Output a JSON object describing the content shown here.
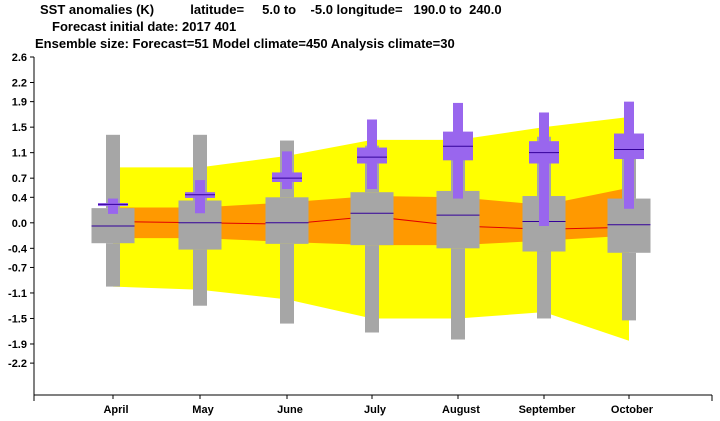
{
  "header": {
    "line1": "SST anomalies (K)          latitude=     5.0 to    -5.0 longitude=   190.0 to  240.0",
    "line2": "Forecast initial date: 2017 401",
    "line3": "Ensemble size: Forecast=51 Model climate=450 Analysis climate=30"
  },
  "chart_data": {
    "type": "box",
    "categories": [
      "April",
      "May",
      "June",
      "July",
      "August",
      "September",
      "October"
    ],
    "ylim": [
      -2.7,
      2.6
    ],
    "yticks": [
      "2.6",
      "2.2",
      "1.9",
      "1.5",
      "1.1",
      "0.7",
      "0.4",
      "0.0",
      "-0.4",
      "-0.7",
      "-1.1",
      "-1.5",
      "-1.9",
      "-2.2"
    ],
    "ytick_values": [
      2.6,
      2.2,
      1.9,
      1.5,
      1.1,
      0.7,
      0.4,
      0.0,
      -0.4,
      -0.7,
      -1.1,
      -1.5,
      -1.9,
      -2.2
    ],
    "model_climate": [
      {
        "min": -1.0,
        "q1": -0.32,
        "median": -0.05,
        "q3": 0.23,
        "max": 1.38
      },
      {
        "min": -1.3,
        "q1": -0.42,
        "median": 0.0,
        "q3": 0.35,
        "max": 1.38
      },
      {
        "min": -1.58,
        "q1": -0.33,
        "median": 0.0,
        "q3": 0.4,
        "max": 1.29
      },
      {
        "min": -1.72,
        "q1": -0.35,
        "median": 0.15,
        "q3": 0.48,
        "max": 1.21
      },
      {
        "min": -1.83,
        "q1": -0.4,
        "median": 0.12,
        "q3": 0.5,
        "max": 1.22
      },
      {
        "min": -1.5,
        "q1": -0.45,
        "median": 0.02,
        "q3": 0.42,
        "max": 1.35
      },
      {
        "min": -1.53,
        "q1": -0.47,
        "median": -0.03,
        "q3": 0.38,
        "max": 1.27
      }
    ],
    "forecast": [
      {
        "min": 0.14,
        "q1": 0.27,
        "median": 0.29,
        "q3": 0.31,
        "max": 0.38
      },
      {
        "min": 0.15,
        "q1": 0.39,
        "median": 0.44,
        "q3": 0.48,
        "max": 0.67
      },
      {
        "min": 0.53,
        "q1": 0.64,
        "median": 0.7,
        "q3": 0.79,
        "max": 1.12
      },
      {
        "min": 0.53,
        "q1": 0.93,
        "median": 1.03,
        "q3": 1.18,
        "max": 1.62
      },
      {
        "min": 0.38,
        "q1": 0.98,
        "median": 1.2,
        "q3": 1.43,
        "max": 1.88
      },
      {
        "min": -0.05,
        "q1": 0.93,
        "median": 1.1,
        "q3": 1.28,
        "max": 1.73
      },
      {
        "min": 0.22,
        "q1": 1.0,
        "median": 1.15,
        "q3": 1.4,
        "max": 1.9
      }
    ],
    "analysis_climate_band_outer": {
      "upper": [
        0.87,
        0.87,
        1.05,
        1.3,
        1.3,
        1.5,
        1.66
      ],
      "lower": [
        -1.0,
        -1.05,
        -1.2,
        -1.5,
        -1.5,
        -1.4,
        -1.85
      ]
    },
    "analysis_climate_band_inner": {
      "upper": [
        0.24,
        0.24,
        0.32,
        0.42,
        0.4,
        0.28,
        0.55
      ],
      "lower": [
        -0.24,
        -0.24,
        -0.3,
        -0.35,
        -0.35,
        -0.28,
        -0.2
      ]
    },
    "analysis_median": [
      0.02,
      0.0,
      -0.02,
      0.1,
      -0.05,
      -0.1,
      -0.07
    ],
    "colors": {
      "outer_band": "#ffff00",
      "inner_band": "#ff9900",
      "median_line": "#e00000",
      "model_box": "#a6a6a6",
      "forecast_box": "#9966ee",
      "box_median": "#330099"
    }
  }
}
